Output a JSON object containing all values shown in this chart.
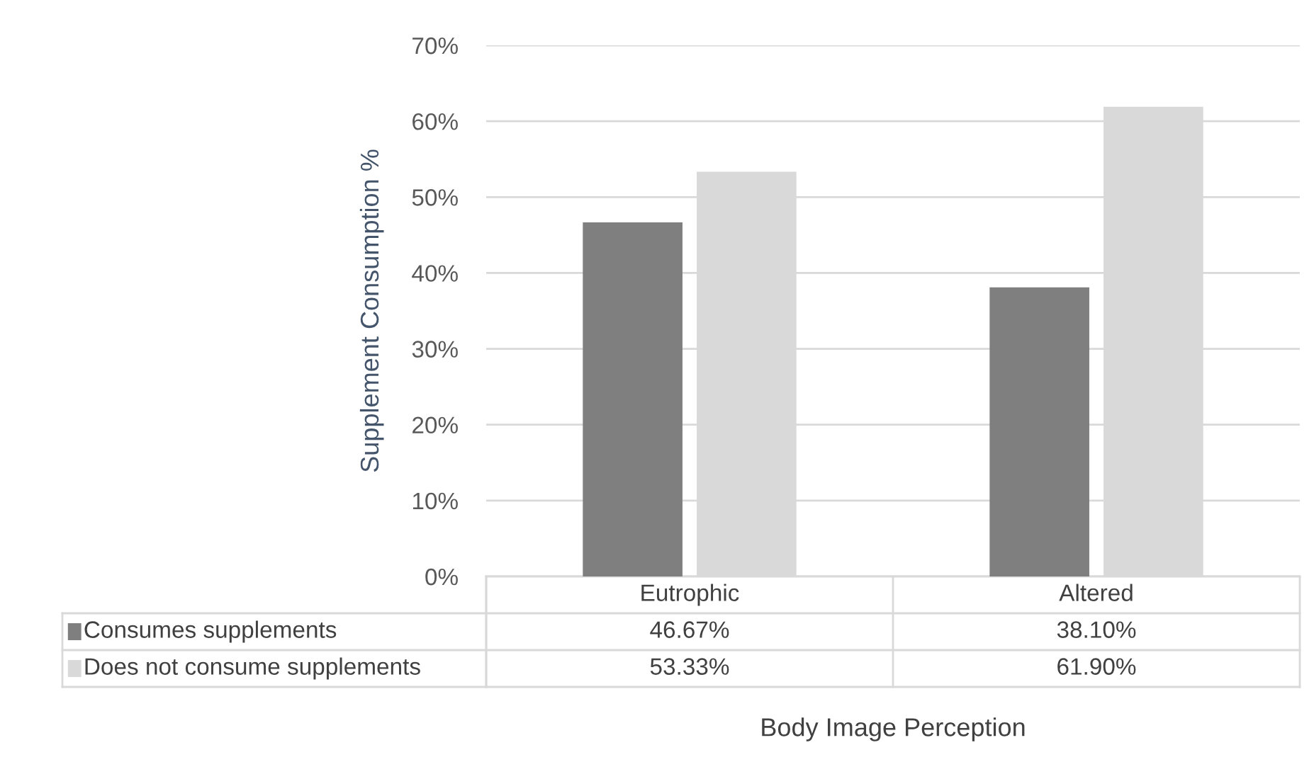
{
  "chart_data": {
    "type": "bar",
    "xlabel": "Body Image Perception",
    "ylabel": "Supplement Consumption %",
    "categories": [
      "Eutrophic",
      "Altered"
    ],
    "series": [
      {
        "name": "Consumes supplements",
        "color": "#7f7f7f",
        "values": [
          46.67,
          38.1
        ],
        "value_labels": [
          "46.67%",
          "38.10%"
        ]
      },
      {
        "name": "Does not consume supplements",
        "color": "#d9d9d9",
        "values": [
          53.33,
          61.9
        ],
        "value_labels": [
          "53.33%",
          "61.90%"
        ]
      }
    ],
    "ylim": [
      0,
      70
    ],
    "yticks": [
      {
        "value": 0,
        "label": "0%"
      },
      {
        "value": 10,
        "label": "10%"
      },
      {
        "value": 20,
        "label": "20%"
      },
      {
        "value": 30,
        "label": "30%"
      },
      {
        "value": 40,
        "label": "40%"
      },
      {
        "value": 50,
        "label": "50%"
      },
      {
        "value": 60,
        "label": "60%"
      },
      {
        "value": 70,
        "label": "70%"
      }
    ],
    "grid": "y",
    "legend": "bottom"
  }
}
